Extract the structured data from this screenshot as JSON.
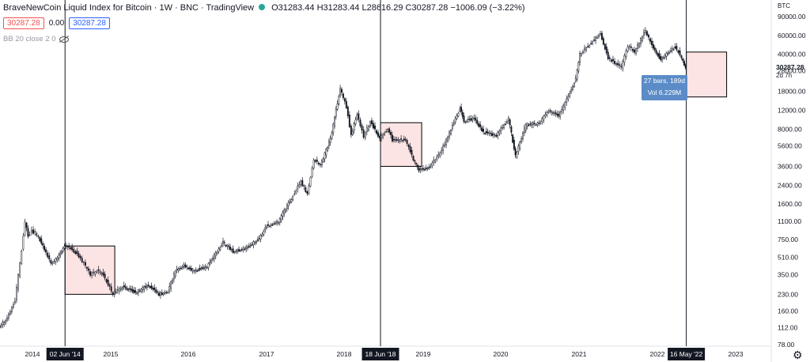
{
  "header": {
    "title": "BraveNewCoin Liquid Index for Bitcoin · 1W · BNC · TradingView",
    "ohlc": "O31283.44 H31283.44 L28616.29 C30287.28 −1006.09 (−3.22%)",
    "price_red": "30287.28",
    "price_mid": "0.00",
    "price_blue": "30287.28",
    "indicator": "BB 20 close 2 0"
  },
  "axis": {
    "currency": "BTC",
    "current_price": "30287.28",
    "countdown": "2d 7h"
  },
  "tooltip": {
    "line1": "27 bars, 189d",
    "line2": "Vol 6.229M"
  },
  "colors": {
    "up": "#26a69a",
    "down": "#131722",
    "box_fill": "#fde4e4",
    "box_stroke": "#000000",
    "tooltip_bg": "#5b8cc7"
  },
  "chart_data": {
    "type": "line",
    "title": "BraveNewCoin Liquid Index for Bitcoin · 1W · BNC · TradingView",
    "y_scale": "log",
    "ylim": [
      78,
      90000
    ],
    "y_ticks": [
      "90000.00",
      "60000.00",
      "40000.00",
      "28000.00",
      "18000.00",
      "12000.00",
      "8000.00",
      "5600.00",
      "3600.00",
      "2400.00",
      "1600.00",
      "1100.00",
      "750.00",
      "510.00",
      "350.00",
      "230.00",
      "160.00",
      "112.00",
      "78.00"
    ],
    "x_ticks": [
      "2014",
      "2015",
      "2016",
      "2017",
      "2018",
      "2019",
      "2020",
      "2021",
      "2022",
      "2023"
    ],
    "highlighted_dates": [
      "02 Jun '14",
      "18 Jun '18",
      "16 May '22"
    ],
    "grid": false,
    "series": [
      {
        "points": [
          [
            "2013-07-01",
            100
          ],
          [
            "2013-09-01",
            130
          ],
          [
            "2013-10-15",
            200
          ],
          [
            "2013-11-15",
            600
          ],
          [
            "2013-12-01",
            1100
          ],
          [
            "2013-12-15",
            800
          ],
          [
            "2014-01-01",
            900
          ],
          [
            "2014-02-01",
            800
          ],
          [
            "2014-03-01",
            600
          ],
          [
            "2014-04-01",
            450
          ],
          [
            "2014-05-01",
            500
          ],
          [
            "2014-06-02",
            650
          ],
          [
            "2014-07-01",
            620
          ],
          [
            "2014-08-01",
            550
          ],
          [
            "2014-09-01",
            450
          ],
          [
            "2014-10-01",
            350
          ],
          [
            "2014-11-01",
            380
          ],
          [
            "2014-12-01",
            350
          ],
          [
            "2015-01-15",
            230
          ],
          [
            "2015-03-01",
            270
          ],
          [
            "2015-05-01",
            240
          ],
          [
            "2015-07-01",
            280
          ],
          [
            "2015-08-20",
            230
          ],
          [
            "2015-10-01",
            245
          ],
          [
            "2015-11-05",
            380
          ],
          [
            "2015-12-15",
            430
          ],
          [
            "2016-02-01",
            380
          ],
          [
            "2016-04-01",
            420
          ],
          [
            "2016-06-15",
            700
          ],
          [
            "2016-08-01",
            580
          ],
          [
            "2016-10-01",
            620
          ],
          [
            "2016-12-01",
            760
          ],
          [
            "2017-01-05",
            1000
          ],
          [
            "2017-03-01",
            1100
          ],
          [
            "2017-05-01",
            1800
          ],
          [
            "2017-06-15",
            2600
          ],
          [
            "2017-07-15",
            2000
          ],
          [
            "2017-08-15",
            4200
          ],
          [
            "2017-09-15",
            3700
          ],
          [
            "2017-11-01",
            6500
          ],
          [
            "2017-12-17",
            19000
          ],
          [
            "2018-01-15",
            13000
          ],
          [
            "2018-02-06",
            7000
          ],
          [
            "2018-03-05",
            11000
          ],
          [
            "2018-04-05",
            6800
          ],
          [
            "2018-05-05",
            9500
          ],
          [
            "2018-06-18",
            6500
          ],
          [
            "2018-07-25",
            8200
          ],
          [
            "2018-08-15",
            6300
          ],
          [
            "2018-10-15",
            6400
          ],
          [
            "2018-11-20",
            4200
          ],
          [
            "2018-12-15",
            3300
          ],
          [
            "2019-02-01",
            3500
          ],
          [
            "2019-04-01",
            5000
          ],
          [
            "2019-05-15",
            8000
          ],
          [
            "2019-06-26",
            12500
          ],
          [
            "2019-07-15",
            9500
          ],
          [
            "2019-09-01",
            10000
          ],
          [
            "2019-10-15",
            7500
          ],
          [
            "2019-12-15",
            7000
          ],
          [
            "2020-02-10",
            10000
          ],
          [
            "2020-03-13",
            4500
          ],
          [
            "2020-05-01",
            8800
          ],
          [
            "2020-07-01",
            9100
          ],
          [
            "2020-08-15",
            12000
          ],
          [
            "2020-10-01",
            10600
          ],
          [
            "2020-11-15",
            16000
          ],
          [
            "2020-12-20",
            24000
          ],
          [
            "2021-01-08",
            40000
          ],
          [
            "2021-02-15",
            48000
          ],
          [
            "2021-04-14",
            63000
          ],
          [
            "2021-05-20",
            37000
          ],
          [
            "2021-06-20",
            33000
          ],
          [
            "2021-07-20",
            30000
          ],
          [
            "2021-08-20",
            48000
          ],
          [
            "2021-09-20",
            42000
          ],
          [
            "2021-11-10",
            67000
          ],
          [
            "2021-12-10",
            48000
          ],
          [
            "2022-01-20",
            36000
          ],
          [
            "2022-03-28",
            47000
          ],
          [
            "2022-04-20",
            40000
          ],
          [
            "2022-05-16",
            30287
          ]
        ]
      }
    ],
    "annotation_boxes": [
      {
        "x0": "2014-06-02",
        "x1": "2015-01-20",
        "y0": 230,
        "y1": 650
      },
      {
        "x0": "2018-06-18",
        "x1": "2018-12-25",
        "y0": 3600,
        "y1": 9200
      },
      {
        "x0": "2022-05-16",
        "x1": "2022-11-20",
        "y0": 16000,
        "y1": 42000
      }
    ]
  }
}
